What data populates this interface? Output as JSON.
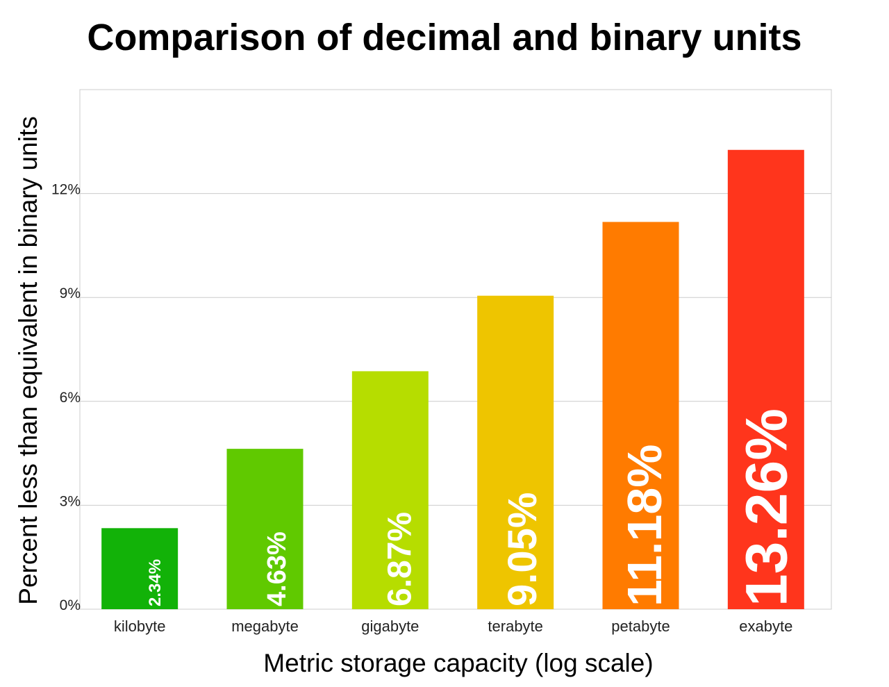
{
  "chart_data": {
    "type": "bar",
    "title": "Comparison of decimal and binary units",
    "xlabel": "Metric storage capacity (log scale)",
    "ylabel": "Percent less than equivalent in binary units",
    "categories": [
      "kilobyte",
      "megabyte",
      "gigabyte",
      "terabyte",
      "petabyte",
      "exabyte"
    ],
    "values": [
      2.34,
      4.63,
      6.87,
      9.05,
      11.18,
      13.26
    ],
    "value_labels": [
      "2.34%",
      "4.63%",
      "6.87%",
      "9.05%",
      "11.18%",
      "13.26%"
    ],
    "bar_colors": [
      "#12b208",
      "#60c900",
      "#b6dd00",
      "#eec500",
      "#ff7b00",
      "#ff351c"
    ],
    "ylim": [
      0,
      15
    ],
    "yticks": [
      0,
      3,
      6,
      9,
      12
    ],
    "ytick_labels": [
      "0%",
      "3%",
      "6%",
      "9%",
      "12%"
    ],
    "grid": true,
    "legend": "none",
    "label_color": "#ffffff",
    "grid_color": "#cccccc",
    "frame_color": "#cccccc"
  }
}
